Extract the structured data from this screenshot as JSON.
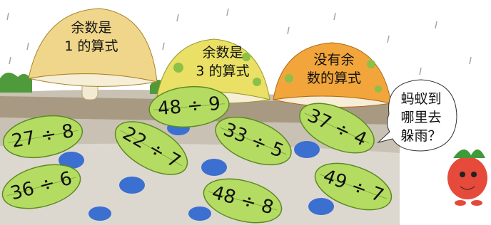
{
  "mushrooms": [
    {
      "lines": [
        "余数是",
        "1 的算式"
      ]
    },
    {
      "lines": [
        "余数是",
        "3 的算式"
      ]
    },
    {
      "lines": [
        "没有余",
        "数的算式"
      ]
    }
  ],
  "leaves": [
    {
      "label": "27 ÷ 8"
    },
    {
      "label": "36 ÷ 6"
    },
    {
      "label": "22 ÷ 7"
    },
    {
      "label": "48 ÷ 9"
    },
    {
      "label": "33 ÷ 5"
    },
    {
      "label": "48 ÷ 8"
    },
    {
      "label": "37 ÷ 4"
    },
    {
      "label": "49 ÷ 7"
    }
  ],
  "bubble": {
    "lines": [
      "蚂蚁到",
      "哪里去",
      "躲雨？"
    ]
  }
}
